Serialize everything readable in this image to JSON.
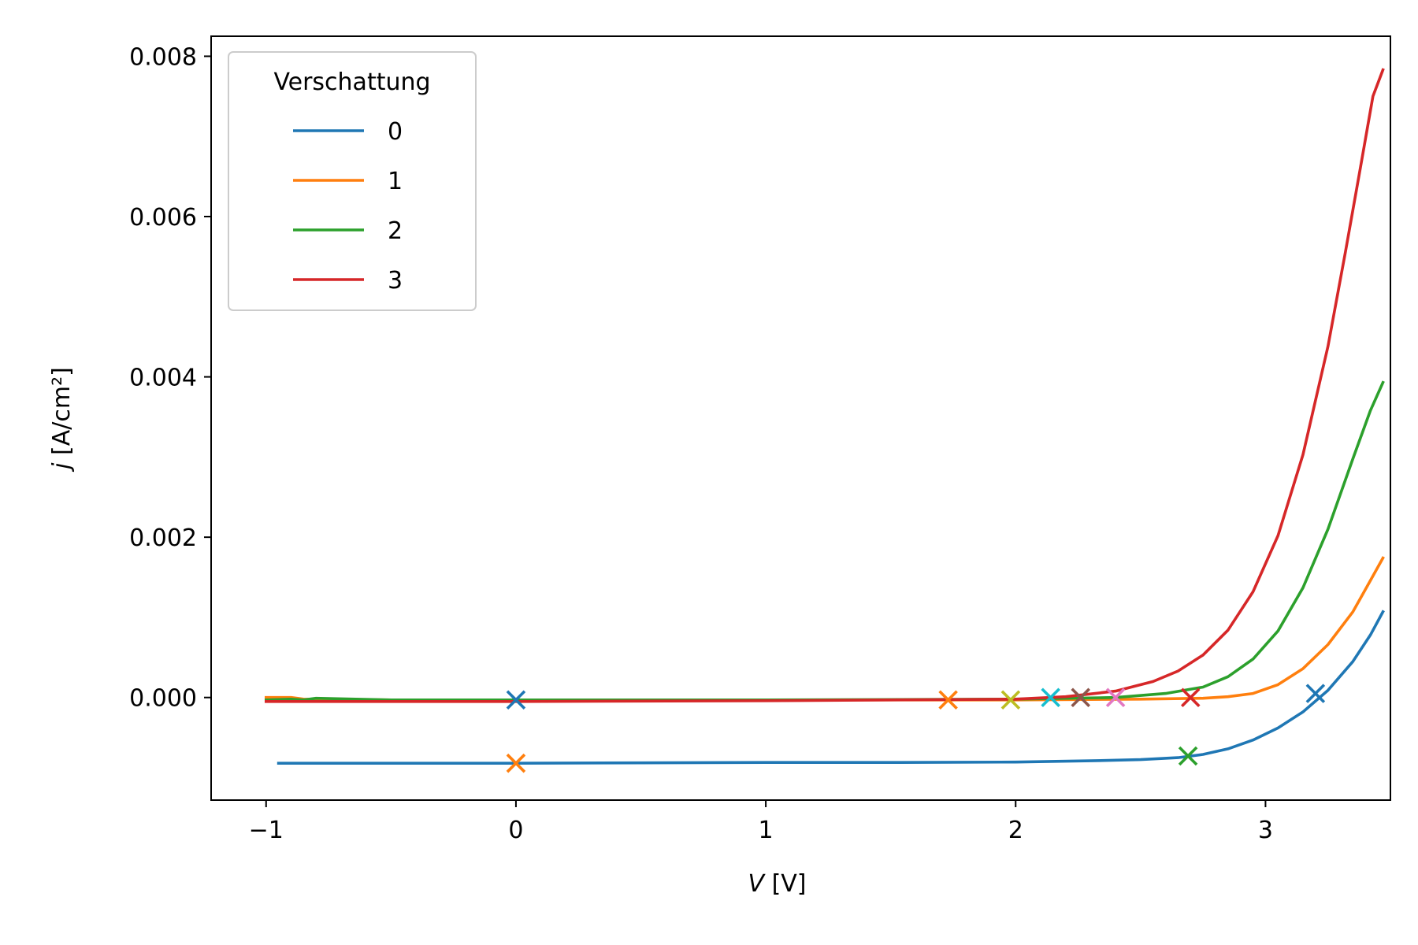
{
  "chart_data": {
    "type": "line",
    "xlabel_symbol": "V",
    "xlabel_unit": "  [V]",
    "ylabel_symbol": "j",
    "ylabel_unit": "  [A/cm²]",
    "xlim": [
      -1.22,
      3.5
    ],
    "ylim": [
      -0.00128,
      0.00825
    ],
    "x_ticks": [
      -1,
      0,
      1,
      2,
      3
    ],
    "x_tick_labels": [
      "−1",
      "0",
      "1",
      "2",
      "3"
    ],
    "y_ticks": [
      0.0,
      0.002,
      0.004,
      0.006,
      0.008
    ],
    "y_tick_labels": [
      "0.000",
      "0.002",
      "0.004",
      "0.006",
      "0.008"
    ],
    "legend": {
      "title": "Verschattung",
      "placement": "upper-left"
    },
    "series": [
      {
        "name": "0",
        "color": "#1f77b4",
        "x": [
          -0.95,
          -0.5,
          0,
          0.5,
          1,
          1.5,
          2,
          2.3,
          2.5,
          2.65,
          2.75,
          2.85,
          2.95,
          3.05,
          3.15,
          3.25,
          3.35,
          3.42,
          3.47
        ],
        "y": [
          -0.00082,
          -0.00082,
          -0.00082,
          -0.000815,
          -0.00081,
          -0.00081,
          -0.000805,
          -0.00079,
          -0.000775,
          -0.00075,
          -0.00071,
          -0.00064,
          -0.00053,
          -0.00038,
          -0.00018,
          9e-05,
          0.00045,
          0.00078,
          0.00107
        ]
      },
      {
        "name": "1",
        "color": "#ff7f0e",
        "x": [
          -1,
          -0.9,
          -0.85,
          -0.5,
          0,
          1,
          2,
          2.5,
          2.75,
          2.85,
          2.95,
          3.05,
          3.15,
          3.25,
          3.35,
          3.42,
          3.47
        ],
        "y": [
          0.0,
          0.0,
          -2e-05,
          -3e-05,
          -3e-05,
          -3e-05,
          -3e-05,
          -2e-05,
          -1e-05,
          1e-05,
          5e-05,
          0.00016,
          0.00036,
          0.00066,
          0.00107,
          0.00146,
          0.00174
        ]
      },
      {
        "name": "2",
        "color": "#2ca02c",
        "x": [
          -1,
          -0.9,
          -0.85,
          -0.8,
          -0.5,
          0,
          1,
          2,
          2.4,
          2.6,
          2.75,
          2.85,
          2.95,
          3.05,
          3.15,
          3.25,
          3.35,
          3.42,
          3.47
        ],
        "y": [
          -3e-05,
          -2e-05,
          -3e-05,
          -1e-05,
          -3e-05,
          -3e-05,
          -3e-05,
          -2e-05,
          0.0,
          5e-05,
          0.00013,
          0.00026,
          0.00048,
          0.00083,
          0.00137,
          0.0021,
          0.00298,
          0.00358,
          0.00393
        ]
      },
      {
        "name": "3",
        "color": "#d62728",
        "x": [
          -1,
          -0.5,
          0,
          1,
          2,
          2.2,
          2.4,
          2.55,
          2.65,
          2.75,
          2.85,
          2.95,
          3.05,
          3.15,
          3.25,
          3.32,
          3.38,
          3.43,
          3.47
        ],
        "y": [
          -5e-05,
          -5e-05,
          -5e-05,
          -4e-05,
          -2e-05,
          1e-05,
          8e-05,
          0.0002,
          0.00033,
          0.00053,
          0.00084,
          0.00132,
          0.00202,
          0.00303,
          0.00438,
          0.00556,
          0.00661,
          0.0075,
          0.00783
        ]
      }
    ],
    "markers": [
      {
        "x": 0.0,
        "y": -3e-05,
        "color": "#1f77b4"
      },
      {
        "x": 0.0,
        "y": -0.00082,
        "color": "#ff7f0e"
      },
      {
        "x": 1.73,
        "y": -3e-05,
        "color": "#ff7f0e"
      },
      {
        "x": 1.98,
        "y": -3e-05,
        "color": "#bcbd22"
      },
      {
        "x": 2.14,
        "y": 0.0,
        "color": "#17becf"
      },
      {
        "x": 2.26,
        "y": 0.0,
        "color": "#8c564b"
      },
      {
        "x": 2.4,
        "y": 0.0,
        "color": "#e377c2"
      },
      {
        "x": 2.7,
        "y": 0.0,
        "color": "#d62728"
      },
      {
        "x": 2.69,
        "y": -0.00073,
        "color": "#2ca02c"
      },
      {
        "x": 3.2,
        "y": 5e-05,
        "color": "#1f77b4"
      }
    ]
  }
}
